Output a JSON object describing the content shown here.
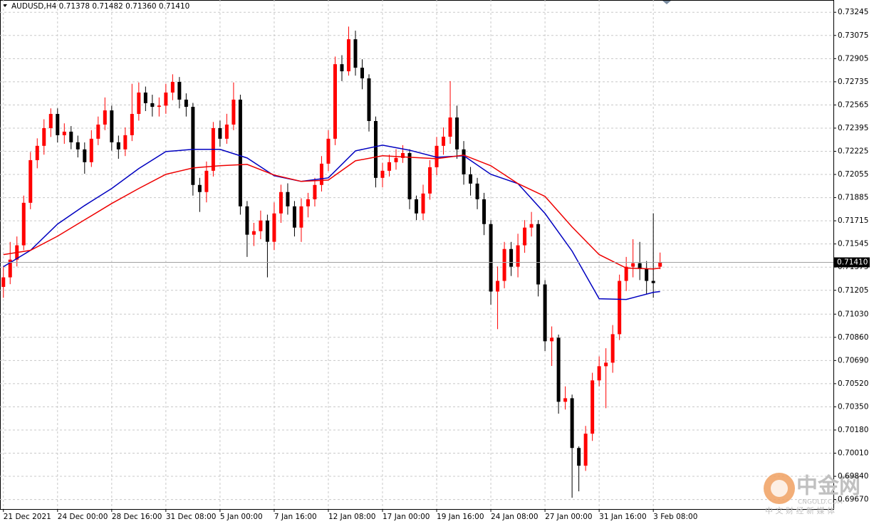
{
  "chart_data": {
    "type": "candlestick",
    "title": "AUDUSD,H4  0.71378 0.71482 0.71360 0.71410",
    "up_color": "#ff0000",
    "down_color": "#000000",
    "grid": true,
    "xlim": [
      -0.5,
      122.6
    ],
    "ylim": [
      0.696,
      0.73335
    ],
    "xticks": [
      {
        "value": 0,
        "label": "21 Dec 2021"
      },
      {
        "value": 8,
        "label": "24 Dec 00:00"
      },
      {
        "value": 16,
        "label": "28 Dec 16:00"
      },
      {
        "value": 24,
        "label": "31 Dec 08:00"
      },
      {
        "value": 32,
        "label": "5 Jan 00:00"
      },
      {
        "value": 40,
        "label": "7 Jan 16:00"
      },
      {
        "value": 48,
        "label": "12 Jan 08:00"
      },
      {
        "value": 56,
        "label": "17 Jan 00:00"
      },
      {
        "value": 64,
        "label": "19 Jan 16:00"
      },
      {
        "value": 72,
        "label": "24 Jan 08:00"
      },
      {
        "value": 80,
        "label": "27 Jan 00:00"
      },
      {
        "value": 88,
        "label": "31 Jan 16:00"
      },
      {
        "value": 96,
        "label": "3 Feb 08:00"
      }
    ],
    "yticks": [
      0.73245,
      0.73075,
      0.72905,
      0.72735,
      0.72565,
      0.72395,
      0.72225,
      0.72055,
      0.71885,
      0.71715,
      0.71545,
      0.71375,
      0.71205,
      {
        "value": 0.7103,
        "label": "0.71030"
      },
      {
        "value": 0.7086,
        "label": "0.70860"
      },
      {
        "value": 0.7069,
        "label": "0.70690"
      },
      {
        "value": 0.7052,
        "label": "0.70520"
      },
      {
        "value": 0.7035,
        "label": "0.70350"
      },
      {
        "value": 0.7018,
        "label": "0.70180"
      },
      {
        "value": 0.7001,
        "label": "0.70010"
      },
      {
        "value": 0.6984,
        "label": "0.69840"
      },
      {
        "value": 0.6967,
        "label": "0.69670"
      }
    ],
    "last_price": {
      "value": 0.7141,
      "label": "0.71410"
    },
    "open": [
      0.7123,
      0.713,
      0.7143,
      0.71535,
      0.71847,
      0.7216,
      0.72265,
      0.72395,
      0.72499,
      0.72343,
      0.72369,
      0.72291,
      0.72239,
      0.72145,
      0.72317,
      0.72421,
      0.72525,
      0.72291,
      0.72239,
      0.72343,
      0.72499,
      0.72656,
      0.72578,
      0.72551,
      0.7256,
      0.72656,
      0.72734,
      0.72604,
      0.72551,
      0.71978,
      0.71926,
      0.72082,
      0.72395,
      0.72317,
      0.72421,
      0.72604,
      0.71821,
      0.71613,
      0.71639,
      0.71717,
      0.71561,
      0.71769,
      0.71926,
      0.71821,
      0.71665,
      0.71821,
      0.71873,
      0.71978,
      0.72134,
      0.72317,
      0.72864,
      0.72812,
      0.73047,
      0.72838,
      0.7276,
      0.72447,
      0.7203,
      0.72082,
      0.72145,
      0.72176,
      0.72212,
      0.71873,
      0.71769,
      0.71915,
      0.72108,
      0.72265,
      0.72332,
      0.72473,
      0.72239,
      0.72056,
      0.71988,
      0.71873,
      0.71691,
      0.71196,
      0.71274,
      0.71508,
      0.71378,
      0.71535,
      0.71665,
      0.71691,
      0.71248,
      0.70831,
      0.70857,
      0.70387,
      0.70413,
      0.70048,
      0.69918,
      0.70153,
      0.70544,
      0.70648,
      0.70674,
      0.70883,
      0.71274,
      0.71378,
      0.71404,
      0.71363,
      0.71274,
      0.71378
    ],
    "high": [
      0.7138,
      0.7156,
      0.716,
      0.719,
      0.7222,
      0.7232,
      0.7246,
      0.7254,
      0.7254,
      0.7243,
      0.7241,
      0.7234,
      0.7229,
      0.7238,
      0.7248,
      0.7262,
      0.7256,
      0.7234,
      0.724,
      0.7272,
      0.7273,
      0.727,
      0.7264,
      0.7262,
      0.7272,
      0.7279,
      0.7277,
      0.7265,
      0.7258,
      0.7203,
      0.7215,
      0.7244,
      0.7245,
      0.725,
      0.7273,
      0.7264,
      0.7186,
      0.717,
      0.7179,
      0.7176,
      0.7185,
      0.7198,
      0.7199,
      0.7186,
      0.7188,
      0.7192,
      0.7203,
      0.7219,
      0.7238,
      0.7292,
      0.7293,
      0.7314,
      0.7311,
      0.729,
      0.7279,
      0.7248,
      0.7214,
      0.722,
      0.7224,
      0.7227,
      0.7224,
      0.719,
      0.7198,
      0.7216,
      0.7233,
      0.724,
      0.7274,
      0.7256,
      0.723,
      0.7211,
      0.7203,
      0.7192,
      0.7172,
      0.7138,
      0.7156,
      0.7156,
      0.7162,
      0.7172,
      0.7178,
      0.7172,
      0.7128,
      0.7094,
      0.7088,
      0.705,
      0.7044,
      0.7006,
      0.7021,
      0.706,
      0.7072,
      0.7078,
      0.7095,
      0.7132,
      0.7145,
      0.7158,
      0.7156,
      0.7142,
      0.7177,
      0.71482
    ],
    "low": [
      0.7115,
      0.7125,
      0.7138,
      0.715,
      0.718,
      0.721,
      0.722,
      0.7233,
      0.7229,
      0.7228,
      0.7224,
      0.7218,
      0.7206,
      0.7211,
      0.7227,
      0.7238,
      0.7223,
      0.7217,
      0.7219,
      0.723,
      0.7245,
      0.7252,
      0.7248,
      0.7248,
      0.725,
      0.726,
      0.7254,
      0.7248,
      0.719,
      0.7178,
      0.7185,
      0.7204,
      0.7226,
      0.7228,
      0.7238,
      0.7176,
      0.7145,
      0.7153,
      0.7158,
      0.713,
      0.715,
      0.717,
      0.7176,
      0.716,
      0.7156,
      0.7174,
      0.7182,
      0.7193,
      0.7208,
      0.7227,
      0.7274,
      0.7278,
      0.7278,
      0.7268,
      0.7237,
      0.7196,
      0.7196,
      0.7204,
      0.7209,
      0.7214,
      0.718,
      0.7172,
      0.7172,
      0.7187,
      0.7205,
      0.722,
      0.7228,
      0.7217,
      0.7198,
      0.719,
      0.718,
      0.7161,
      0.711,
      0.7092,
      0.7122,
      0.7131,
      0.713,
      0.7148,
      0.716,
      0.7116,
      0.7076,
      0.7065,
      0.703,
      0.7033,
      0.69683,
      0.6973,
      0.6988,
      0.701,
      0.705,
      0.7034,
      0.706,
      0.7084,
      0.712,
      0.713,
      0.7128,
      0.7118,
      0.7115,
      0.7136
    ],
    "close": [
      0.713,
      0.7143,
      0.71535,
      0.71847,
      0.7216,
      0.72265,
      0.72395,
      0.72499,
      0.72343,
      0.72369,
      0.72291,
      0.72239,
      0.72145,
      0.72317,
      0.72421,
      0.72525,
      0.72291,
      0.72239,
      0.72343,
      0.72499,
      0.72656,
      0.72578,
      0.72551,
      0.7256,
      0.72656,
      0.72734,
      0.72604,
      0.72551,
      0.71978,
      0.71926,
      0.72082,
      0.72395,
      0.72317,
      0.72421,
      0.72604,
      0.71821,
      0.71613,
      0.71639,
      0.71717,
      0.71561,
      0.71769,
      0.71926,
      0.71821,
      0.71665,
      0.71821,
      0.71873,
      0.71978,
      0.72134,
      0.72317,
      0.72864,
      0.72812,
      0.73047,
      0.72838,
      0.7276,
      0.72447,
      0.7203,
      0.72082,
      0.72145,
      0.72176,
      0.72212,
      0.71873,
      0.71769,
      0.71915,
      0.72108,
      0.72265,
      0.72332,
      0.72473,
      0.72239,
      0.72056,
      0.71988,
      0.71873,
      0.71691,
      0.71196,
      0.71274,
      0.71508,
      0.71378,
      0.71535,
      0.71665,
      0.71691,
      0.71248,
      0.70831,
      0.70857,
      0.70387,
      0.70413,
      0.70048,
      0.69918,
      0.70153,
      0.70544,
      0.70648,
      0.70674,
      0.70883,
      0.71274,
      0.71378,
      0.71404,
      0.71363,
      0.71274,
      0.71258,
      0.7141
    ],
    "lines": [
      {
        "color": "#0000c0",
        "x": [
          0,
          4,
          8,
          12,
          16,
          20,
          24,
          28,
          32,
          36,
          40,
          44,
          48,
          52,
          56,
          60,
          64,
          68,
          72,
          76,
          80,
          84,
          88,
          92,
          96,
          97
        ],
        "values": [
          0.71378,
          0.71498,
          0.71691,
          0.71827,
          0.71952,
          0.72098,
          0.72223,
          0.72239,
          0.72239,
          0.72176,
          0.72046,
          0.72004,
          0.7203,
          0.72228,
          0.7227,
          0.72233,
          0.72181,
          0.72192,
          0.72056,
          0.71988,
          0.71769,
          0.71493,
          0.71143,
          0.71138,
          0.7119,
          0.71196
        ]
      },
      {
        "color": "#ee0000",
        "x": [
          0,
          4,
          8,
          12,
          16,
          20,
          24,
          28,
          32,
          36,
          40,
          44,
          48,
          52,
          56,
          60,
          64,
          68,
          72,
          76,
          80,
          84,
          88,
          92,
          96,
          97
        ],
        "values": [
          0.71467,
          0.71498,
          0.71602,
          0.71722,
          0.71842,
          0.71952,
          0.72056,
          0.72103,
          0.72119,
          0.72129,
          0.72051,
          0.72004,
          0.72014,
          0.72155,
          0.72192,
          0.72181,
          0.72171,
          0.72197,
          0.72119,
          0.71988,
          0.71894,
          0.7167,
          0.71467,
          0.71368,
          0.71362,
          0.71368
        ]
      }
    ],
    "watermark": {
      "name": "中金网",
      "domain": "CNGOLD.COM",
      "tagline": "中 文 财 经 新 媒 体"
    }
  }
}
